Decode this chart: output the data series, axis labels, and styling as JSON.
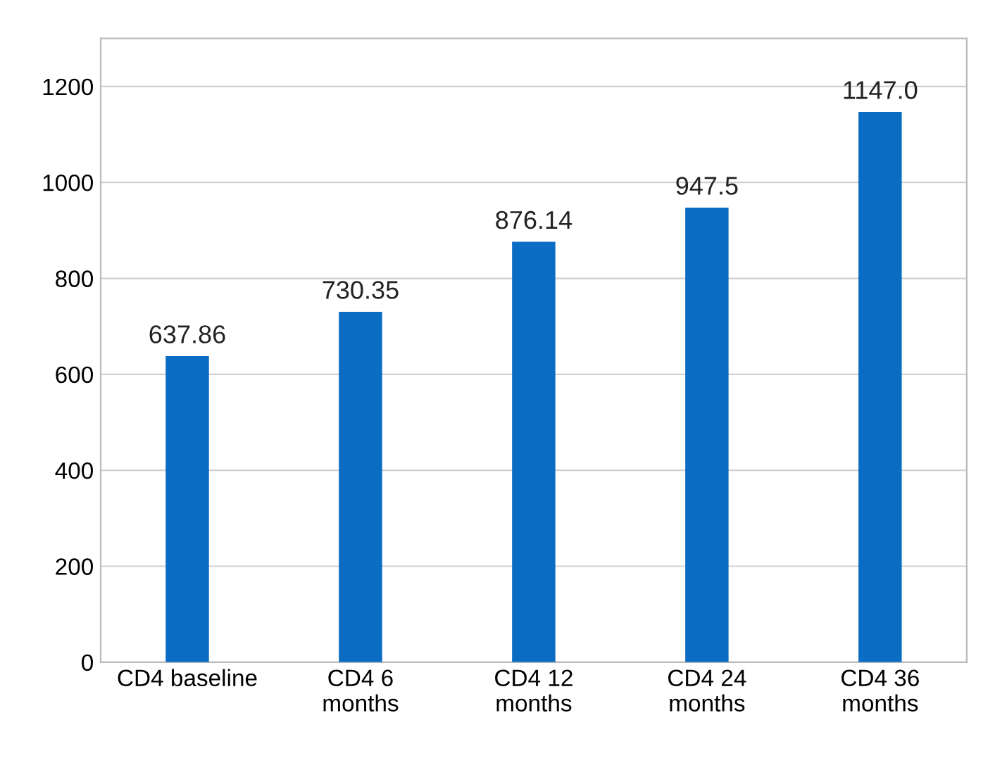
{
  "chart_data": {
    "type": "bar",
    "categories": [
      "CD4 baseline",
      "CD4 6\nmonths",
      "CD4 12\nmonths",
      "CD4 24\nmonths",
      "CD4 36\nmonths"
    ],
    "values": [
      637.86,
      730.35,
      876.14,
      947.5,
      1147.0
    ],
    "value_labels": [
      "637.86",
      "730.35",
      "876.14",
      "947.5",
      "1147.0"
    ],
    "color": "#0b6cc4",
    "ylim": [
      0,
      1300
    ],
    "yticks": [
      0,
      200,
      400,
      600,
      800,
      1000,
      1200
    ],
    "grid": "y"
  }
}
